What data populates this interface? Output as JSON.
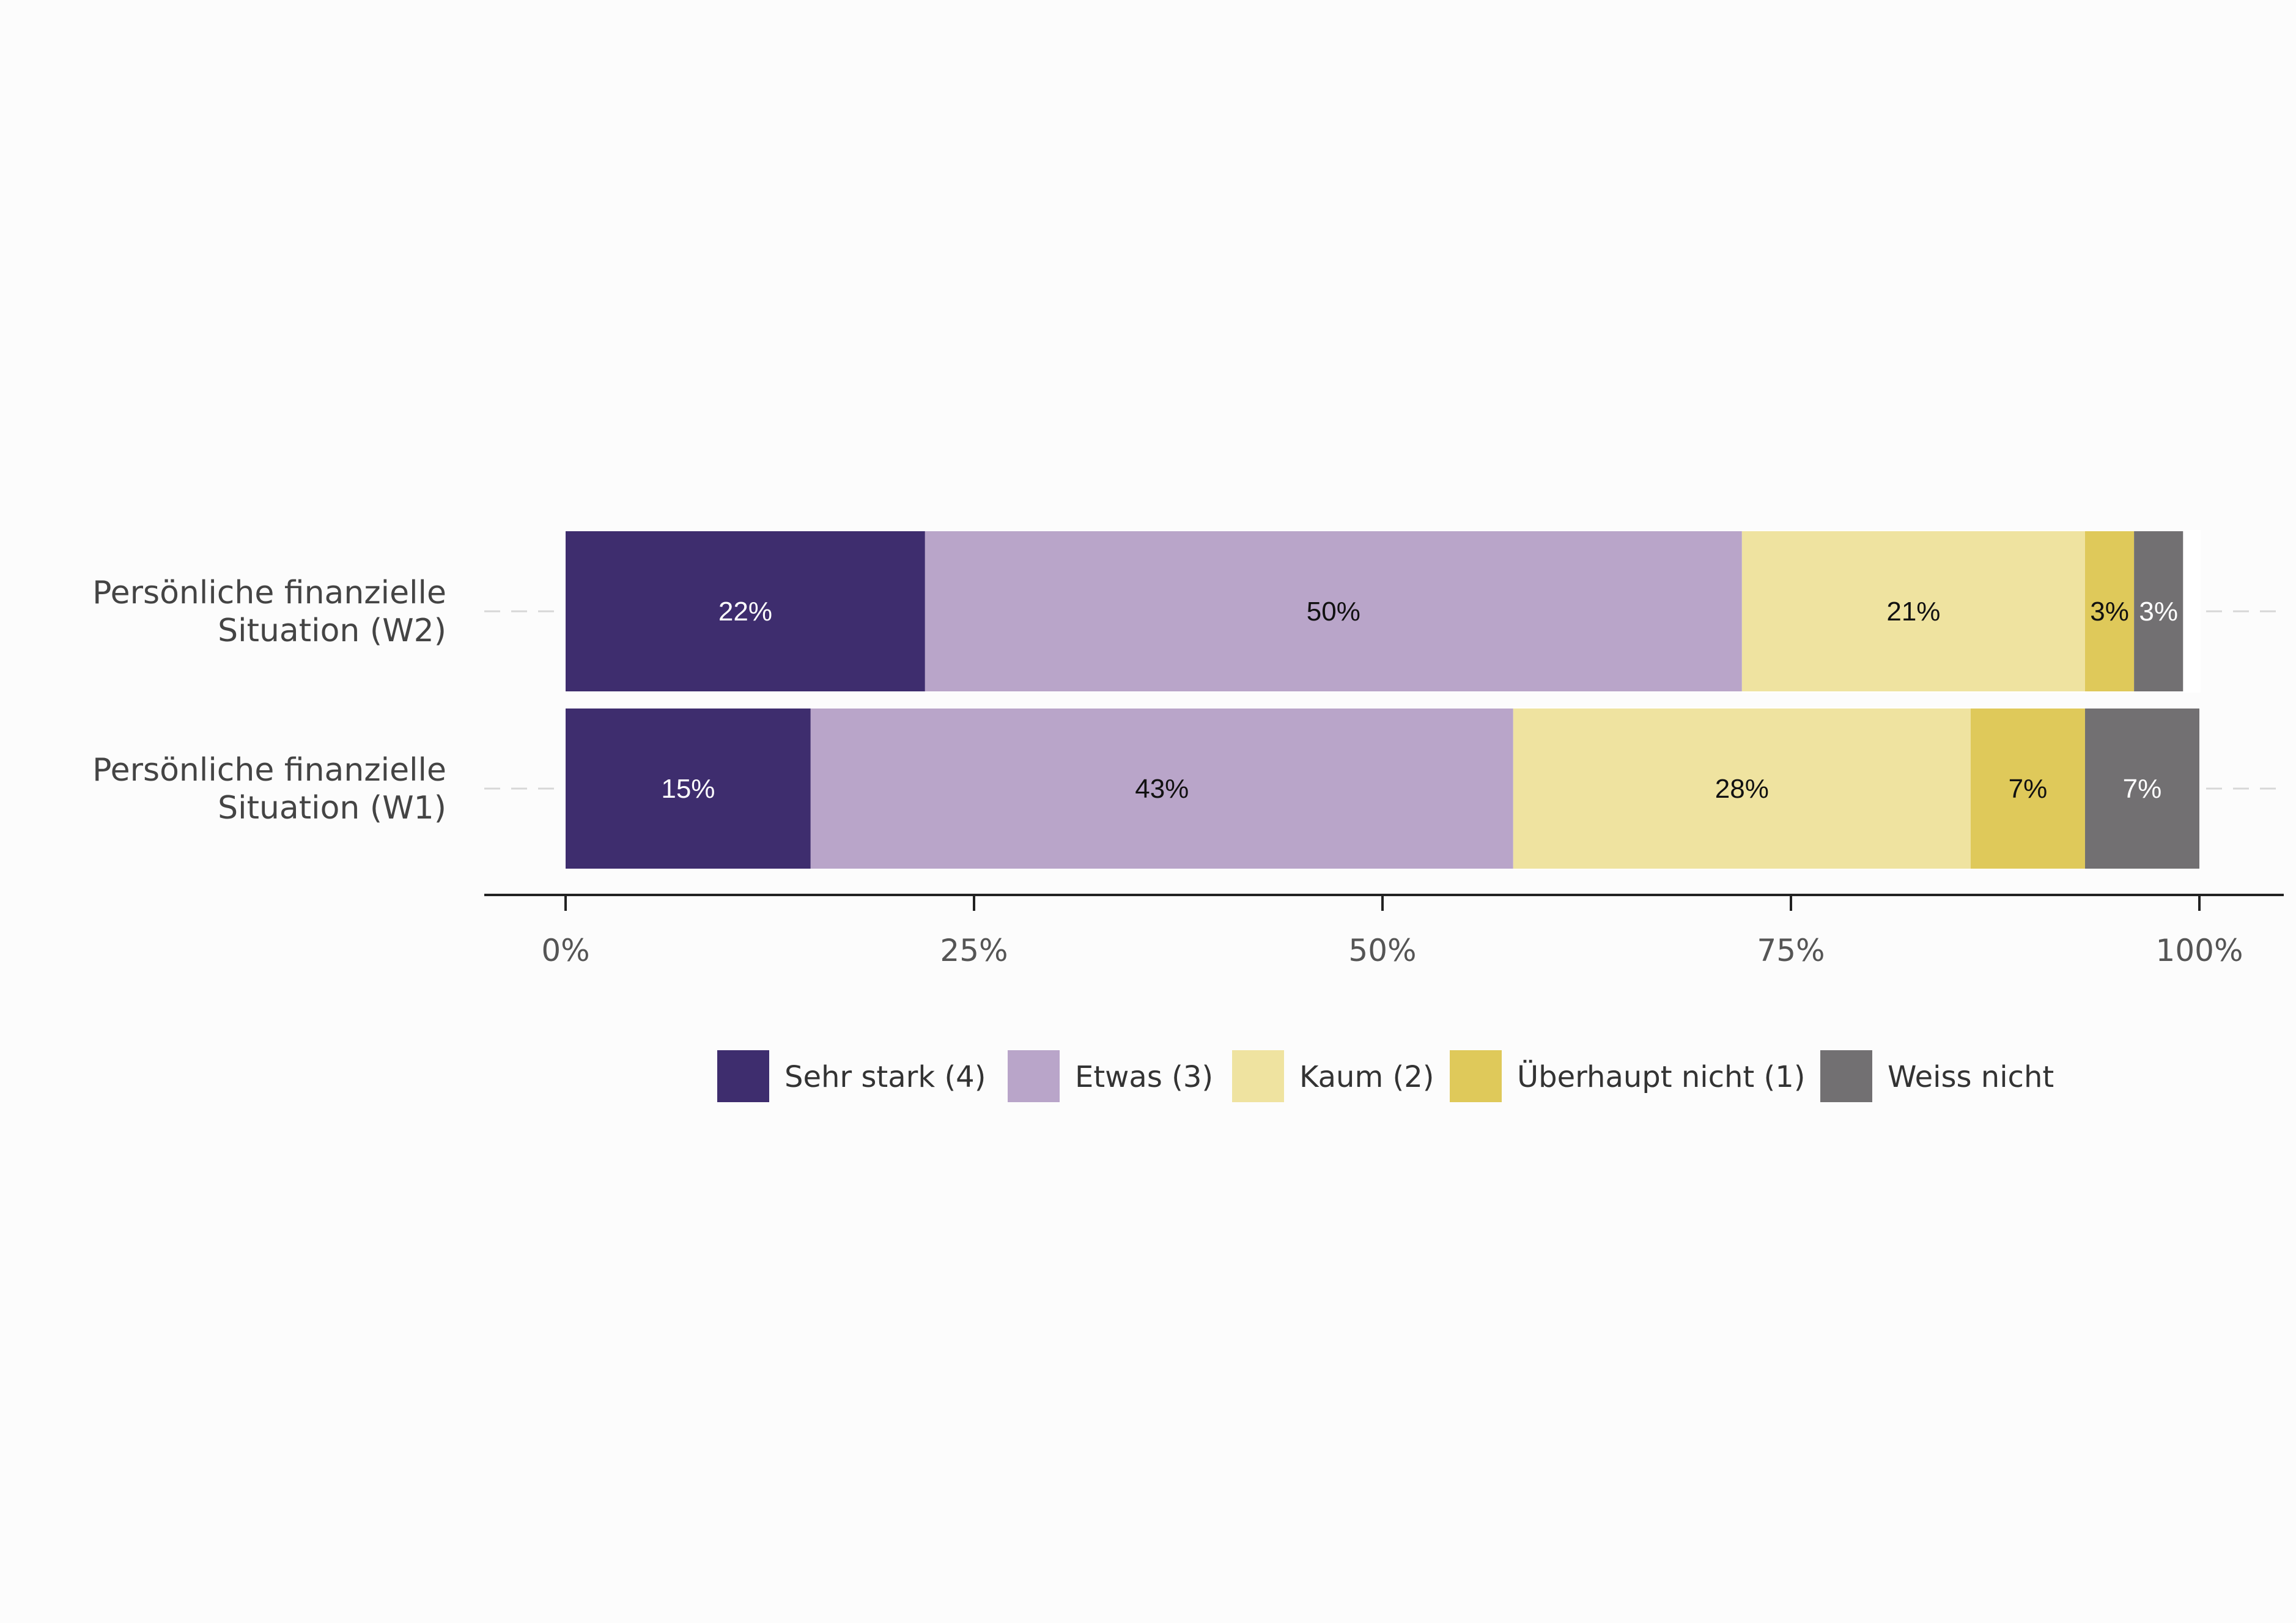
{
  "chart_data": {
    "type": "bar",
    "orientation": "horizontal",
    "stacked": true,
    "categories": [
      {
        "lines": [
          "Persönliche finanzielle",
          "Situation (W2)"
        ]
      },
      {
        "lines": [
          "Persönliche finanzielle",
          "Situation (W1)"
        ]
      }
    ],
    "series": [
      {
        "name": "Sehr stark (4)",
        "color": "#3e2d6e",
        "label_color": "#ffffff",
        "values": [
          22,
          15
        ],
        "labels": [
          "22%",
          "15%"
        ]
      },
      {
        "name": "Etwas (3)",
        "color": "#b9a5c9",
        "label_color": "#111111",
        "values": [
          50,
          43
        ],
        "labels": [
          "50%",
          "43%"
        ]
      },
      {
        "name": "Kaum (2)",
        "color": "#efe3a0",
        "label_color": "#111111",
        "values": [
          21,
          28
        ],
        "labels": [
          "21%",
          "28%"
        ]
      },
      {
        "name": "Überhaupt nicht (1)",
        "color": "#dfc95a",
        "label_color": "#111111",
        "values": [
          3,
          7
        ],
        "labels": [
          "3%",
          "7%"
        ]
      },
      {
        "name": "Weiss nicht",
        "color": "#727072",
        "label_color": "#ffffff",
        "values": [
          3,
          7
        ],
        "labels": [
          "3%",
          "7%"
        ]
      }
    ],
    "x_ticks": [
      {
        "value": 0,
        "label": "0%"
      },
      {
        "value": 25,
        "label": "25%"
      },
      {
        "value": 50,
        "label": "50%"
      },
      {
        "value": 75,
        "label": "75%"
      },
      {
        "value": 100,
        "label": "100%"
      }
    ],
    "xlim": [
      0,
      100
    ],
    "title": "",
    "xlabel": "",
    "ylabel": "",
    "grid": "dashed horizontal lines at categories",
    "legend_position": "bottom"
  }
}
